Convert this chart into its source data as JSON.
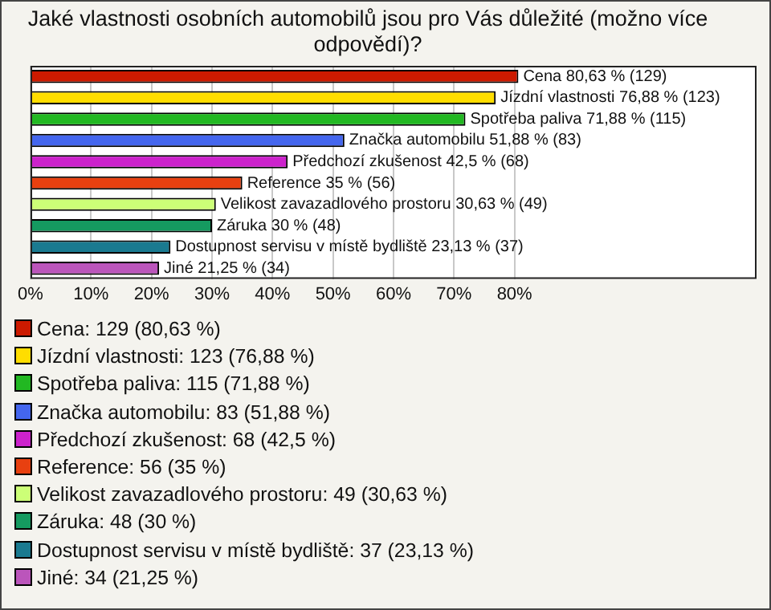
{
  "chart_data": {
    "type": "bar",
    "orientation": "horizontal",
    "title": "Jaké vlastnosti osobních automobilů jsou pro Vás důležité (možno více odpovědí)?",
    "categories": [
      null,
      null,
      null,
      null,
      null,
      null,
      null,
      null,
      null,
      null
    ],
    "values": [
      80.63,
      76.88,
      71.88,
      51.88,
      42.5,
      35,
      30.63,
      30,
      23.13,
      21.25
    ],
    "colors": [
      "#cc1a00",
      "#ffdd00",
      "#22b822",
      "#4466ee",
      "#cc22cc",
      "#e84010",
      "#ccff77",
      "#159a60",
      "#1a7a90",
      "#bb55bb"
    ],
    "value_labels": [
      "Cena 80,63 % (129)",
      "Jízdní vlastnosti 76,88 % (123)",
      "Spotřeba paliva 71,88 % (115)",
      "Značka automobilu 51,88 % (83)",
      "Předchozí zkušenost 42,5 % (68)",
      "Reference 35 % (56)",
      "Velikost zavazadlového prostoru 30,63 % (49)",
      "Záruka 30 % (48)",
      "Dostupnost servisu v místě bydliště 23,13 % (37)",
      "Jiné 21,25 % (34)"
    ],
    "xlim": [
      0,
      120
    ],
    "xticks": [
      {
        "value": 0,
        "label": "0%"
      },
      {
        "value": 10,
        "label": "10%"
      },
      {
        "value": 20,
        "label": "20%"
      },
      {
        "value": 30,
        "label": "30%"
      },
      {
        "value": 40,
        "label": "40%"
      },
      {
        "value": 50,
        "label": "50%"
      },
      {
        "value": 60,
        "label": "60%"
      },
      {
        "value": 70,
        "label": "70%"
      },
      {
        "value": 80,
        "label": "80%"
      }
    ],
    "grid": "x",
    "tick_labels": "x",
    "annotations": [
      "Cena: 129 (80,63 %)",
      "Jízdní vlastnosti: 123 (76,88 %)",
      "Spotřeba paliva: 115 (71,88 %)",
      "Značka automobilu: 83 (51,88 %)",
      "Předchozí zkušenost: 68 (42,5 %)",
      "Reference: 56 (35 %)",
      "Velikost zavazadlového prostoru: 49 (30,63 %)",
      "Záruka: 48 (30 %)",
      "Dostupnost servisu v místě bydliště: 37 (23,13 %)",
      "Jiné: 34 (21,25 %)"
    ]
  }
}
